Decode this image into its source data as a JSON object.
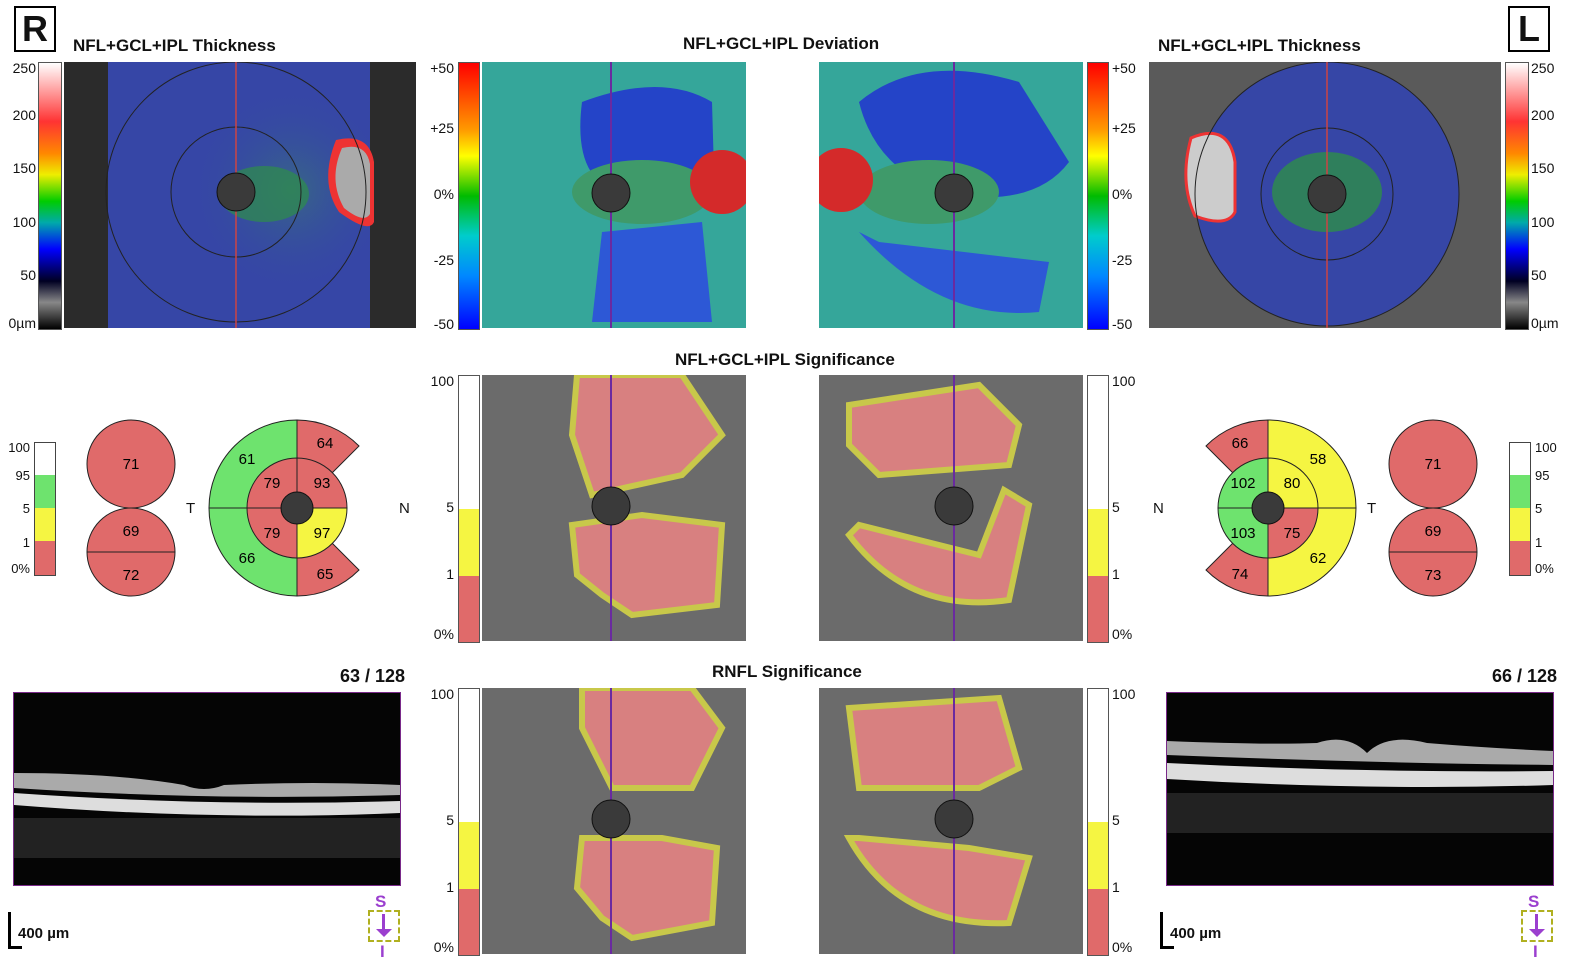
{
  "eyes": {
    "right": "R",
    "left": "L"
  },
  "titles": {
    "thickness": "NFL+GCL+IPL Thickness",
    "deviation": "NFL+GCL+IPL Deviation",
    "significance": "NFL+GCL+IPL Significance",
    "rnfl": "RNFL Significance"
  },
  "thickness_scale": [
    "250",
    "200",
    "150",
    "100",
    "50",
    "0µm"
  ],
  "deviation_scale": [
    "+50",
    "+25",
    "0%",
    "-25",
    "-50"
  ],
  "significance_scale": [
    "100",
    "5",
    "1",
    "0%"
  ],
  "small_legend": [
    "100",
    "95",
    "5",
    "1",
    "0%"
  ],
  "labels": {
    "T": "T",
    "N": "N"
  },
  "right_eye": {
    "hemi": {
      "top": "71",
      "bottom_sup": "69",
      "bottom_inf": "72"
    },
    "sectors": {
      "outer_st": "64",
      "outer_t": "61",
      "outer_it": "66",
      "outer_in": "65",
      "inner_sup": "79",
      "inner_st": "93",
      "inner_inf": "79",
      "inner_in": "97"
    },
    "bscan": "63 / 128"
  },
  "left_eye": {
    "hemi": {
      "top": "71",
      "bottom_sup": "69",
      "bottom_inf": "73"
    },
    "sectors": {
      "outer_sn": "66",
      "outer_n": "102",
      "outer_in": "103",
      "outer_inf": "74",
      "inner_sup": "80",
      "inner_inf": "75",
      "outer_st": "58",
      "outer_it": "62"
    },
    "bscan": "66 / 128"
  },
  "scalebar": "400 µm",
  "compass": {
    "s": "S",
    "i": "I"
  },
  "colors": {
    "red": "#e06a6a",
    "green": "#6ee36e",
    "yellow": "#f5f542",
    "white": "#ffffff",
    "dark": "#3a3a3a",
    "accent": "#9b3fcf"
  }
}
